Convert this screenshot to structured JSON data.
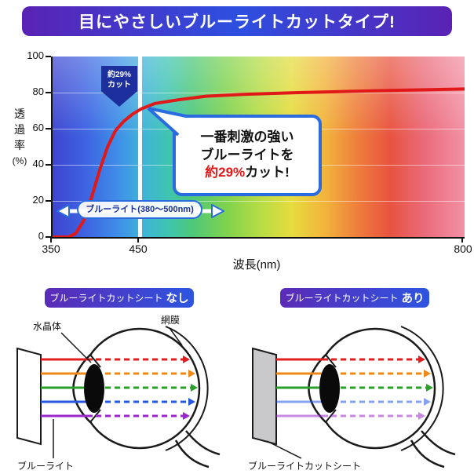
{
  "banner": {
    "title": "目にやさしいブルーライトカットタイプ!"
  },
  "chart_data": {
    "type": "line",
    "title": "",
    "xlabel": "波長(nm)",
    "ylabel": "透過率",
    "ylabel_unit": "(%)",
    "xlim": [
      350,
      800
    ],
    "ylim": [
      0,
      100
    ],
    "x_ticks": [
      350,
      450,
      800
    ],
    "y_ticks": [
      0,
      20,
      40,
      60,
      80,
      100
    ],
    "x_scale_note": "non-linear axis: 350-450nm spans left 21.5% of plot, 450-800nm the remainder",
    "grid": "faint horizontal lines at each y tick",
    "background": "visible light spectrum gradient (blue to red)",
    "series": [
      {
        "name": "透過率(%)",
        "color": "#e01818",
        "points": [
          [
            350,
            0
          ],
          [
            368,
            0
          ],
          [
            376,
            2
          ],
          [
            385,
            9
          ],
          [
            394,
            22
          ],
          [
            403,
            37
          ],
          [
            412,
            50
          ],
          [
            421,
            59
          ],
          [
            430,
            64
          ],
          [
            440,
            68
          ],
          [
            450,
            71
          ],
          [
            465,
            74
          ],
          [
            490,
            76
          ],
          [
            520,
            78
          ],
          [
            560,
            79
          ],
          [
            620,
            80
          ],
          [
            700,
            81
          ],
          [
            800,
            82
          ]
        ]
      }
    ],
    "annotations": {
      "cut_wavelength_nm": 450,
      "arrow_label_line1": "約29%",
      "arrow_label_line2": "カット",
      "callout_line1": "一番刺激の強い",
      "callout_line2": "ブルーライトを",
      "callout_line3_red": "約29%",
      "callout_line3_black": "カット!",
      "range_label": "ブルーライト(380〜500nm)"
    }
  },
  "diagrams": {
    "left": {
      "header_prefix": "ブルーライトカットシート",
      "header_suffix": "なし",
      "label_lens": "水晶体",
      "label_retina": "網膜",
      "label_bottom": "ブルーライト"
    },
    "right": {
      "header_prefix": "ブルーライトカットシート",
      "header_suffix": "あり",
      "label_bottom": "ブルーライトカットシート"
    },
    "light_arrow_colors": [
      "#e02020",
      "#f08818",
      "#2aa02a",
      "#2858e0",
      "#9a28c8"
    ]
  },
  "colors": {
    "banner_purple": "#5a22b4",
    "banner_blue": "#2d4fe0",
    "accent_blue": "#2a6ce0",
    "curve_red": "#e01818",
    "callout_red": "#e01818",
    "arrow_navy": "#1d2f9c",
    "cut_line_white": "#ffffff"
  }
}
